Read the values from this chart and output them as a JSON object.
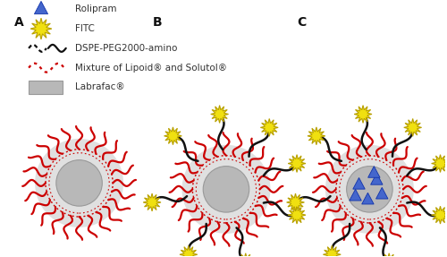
{
  "bg_color": "#ffffff",
  "red_color": "#cc0000",
  "black_color": "#111111",
  "gray_fill": "#b8b8b8",
  "gray_shell": "#e0e0e0",
  "yellow_fitc": "#f0e010",
  "yellow_dark": "#b8a000",
  "blue_rolipram": "#4466cc",
  "blue_dark": "#1133aa",
  "figure_width": 5.0,
  "figure_height": 2.87,
  "legend_items": [
    "Labrafac®",
    "Mixture of Lipoid® and Solutol®",
    "DSPE-PEG2000-amino",
    "FITC",
    "Rolipram"
  ]
}
